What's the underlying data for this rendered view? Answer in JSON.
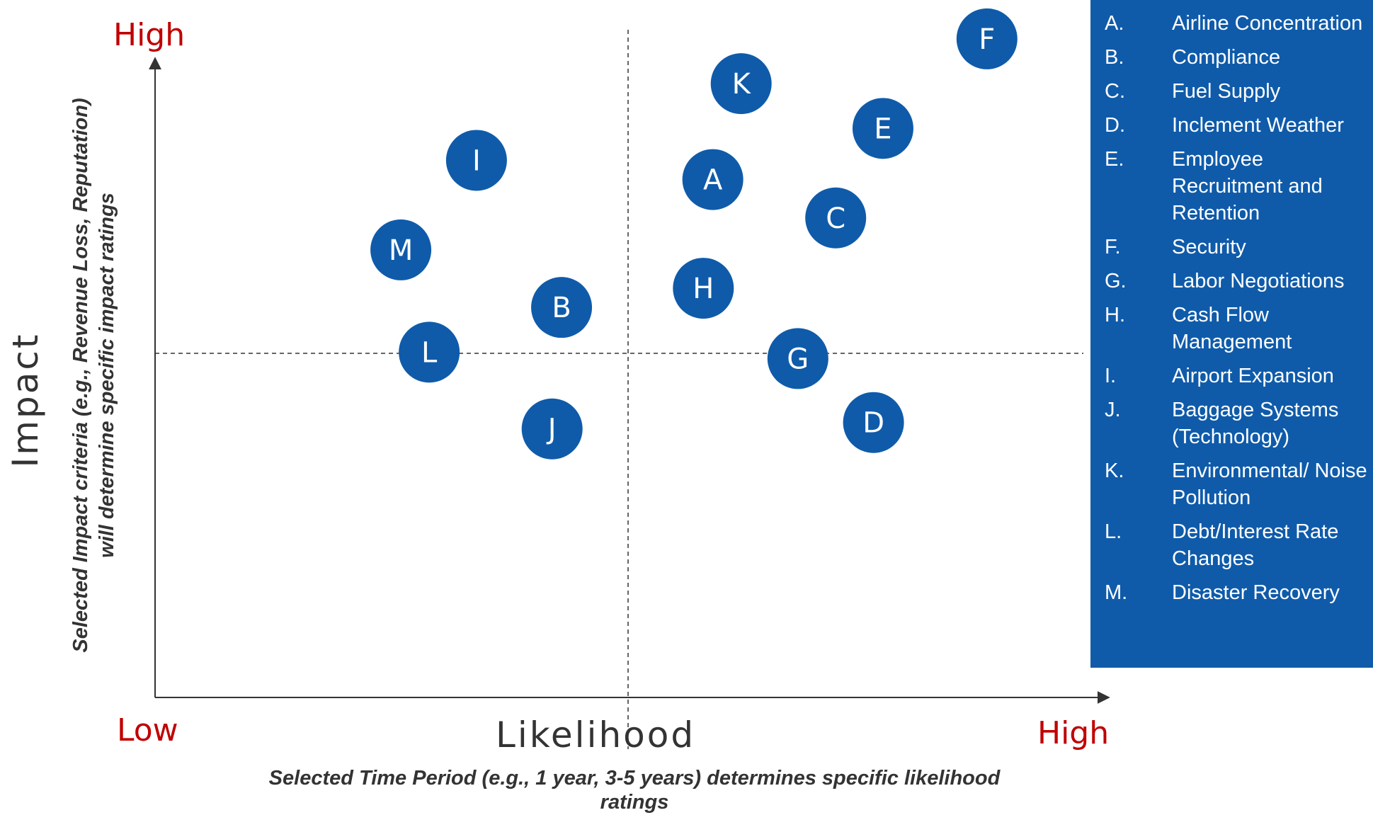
{
  "colors": {
    "bubble": "#0f5baa",
    "label_red": "#c00000",
    "legend_bg": "#0f5baa",
    "axis": "#333333"
  },
  "chart_data": {
    "type": "scatter",
    "y_axis": {
      "title": "Impact",
      "subtitle_line1": "Selected Impact criteria (e.g., Revenue Loss, Reputation)",
      "subtitle_line2": "will determine specific impact ratings",
      "high_label": "High"
    },
    "x_axis": {
      "title": "Likelihood",
      "subtitle_line1": "Selected Time Period (e.g., 1 year, 3-5 years) determines specific likelihood",
      "subtitle_line2": "ratings",
      "low_label": "Low",
      "high_label": "High"
    },
    "xlim": [
      0,
      10
    ],
    "ylim": [
      0,
      10
    ],
    "dividers": {
      "x": 5,
      "y": 5
    },
    "grid": false,
    "legend_position": "right",
    "points": [
      {
        "label": "A",
        "x": 5.9,
        "y": 8.1
      },
      {
        "label": "B",
        "x": 4.3,
        "y": 6.1
      },
      {
        "label": "C",
        "x": 7.2,
        "y": 7.5
      },
      {
        "label": "D",
        "x": 7.6,
        "y": 4.3
      },
      {
        "label": "E",
        "x": 7.7,
        "y": 8.9
      },
      {
        "label": "F",
        "x": 8.8,
        "y": 10.3
      },
      {
        "label": "G",
        "x": 6.8,
        "y": 5.3
      },
      {
        "label": "H",
        "x": 5.8,
        "y": 6.4
      },
      {
        "label": "I",
        "x": 3.4,
        "y": 8.4
      },
      {
        "label": "J",
        "x": 4.2,
        "y": 4.2
      },
      {
        "label": "K",
        "x": 6.2,
        "y": 9.6
      },
      {
        "label": "L",
        "x": 2.9,
        "y": 5.4
      },
      {
        "label": "M",
        "x": 2.6,
        "y": 7.0
      }
    ]
  },
  "legend": [
    {
      "letter": "A.",
      "name": "Airline Concentration"
    },
    {
      "letter": "B.",
      "name": "Compliance"
    },
    {
      "letter": "C.",
      "name": "Fuel Supply"
    },
    {
      "letter": "D.",
      "name": "Inclement Weather"
    },
    {
      "letter": "E.",
      "name": "Employee Recruitment and Retention"
    },
    {
      "letter": "F.",
      "name": "Security"
    },
    {
      "letter": "G.",
      "name": "Labor Negotiations"
    },
    {
      "letter": "H.",
      "name": "Cash Flow Management"
    },
    {
      "letter": "I.",
      "name": "Airport Expansion"
    },
    {
      "letter": "J.",
      "name": "Baggage Systems (Technology)"
    },
    {
      "letter": "K.",
      "name": "Environmental/ Noise Pollution"
    },
    {
      "letter": "L.",
      "name": "Debt/Interest Rate Changes"
    },
    {
      "letter": "M.",
      "name": "Disaster Recovery"
    }
  ]
}
